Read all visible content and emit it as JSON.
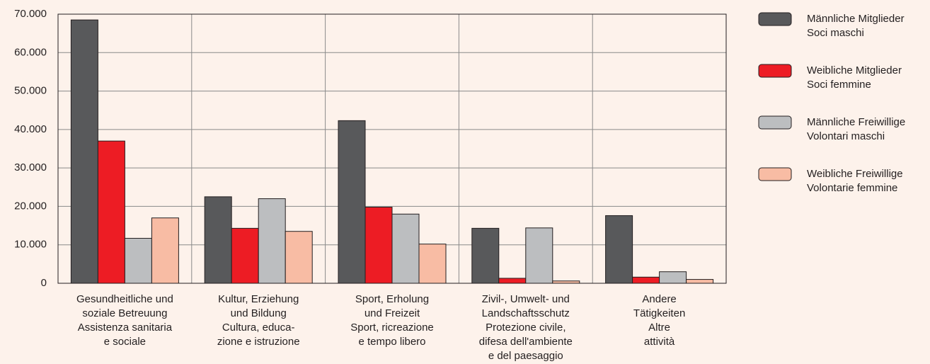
{
  "chart_data": {
    "type": "bar",
    "categories": [
      [
        "Gesundheitliche und",
        "soziale Betreuung",
        "Assistenza sanitaria",
        "e sociale"
      ],
      [
        "Kultur, Erziehung",
        "und Bildung",
        "Cultura, educa-",
        "zione e istruzione"
      ],
      [
        "Sport, Erholung",
        "und Freizeit",
        "Sport, ricreazione",
        "e tempo libero"
      ],
      [
        "Zivil-, Umwelt- und",
        "Landschaftsschutz",
        "Protezione civile,",
        "difesa dell'ambiente",
        "e del paesaggio"
      ],
      [
        "Andere",
        "Tätigkeiten",
        "Altre",
        "attività"
      ]
    ],
    "series": [
      {
        "name": [
          "Männliche Mitglieder",
          "Soci maschi"
        ],
        "color": "#58595b",
        "values": [
          68500,
          22500,
          42300,
          14300,
          17600
        ]
      },
      {
        "name": [
          "Weibliche Mitglieder",
          "Soci femmine"
        ],
        "color": "#ed1c24",
        "values": [
          37000,
          14300,
          19800,
          1300,
          1600
        ]
      },
      {
        "name": [
          "Männliche Freiwillige",
          "Volontari maschi"
        ],
        "color": "#bcbec0",
        "values": [
          11700,
          22000,
          18000,
          14400,
          3000
        ]
      },
      {
        "name": [
          "Weibliche Freiwillige",
          "Volontarie femmine"
        ],
        "color": "#f8bca4",
        "values": [
          17000,
          13500,
          10200,
          600,
          1000
        ]
      }
    ],
    "ylim": [
      0,
      70000
    ],
    "yticks": [
      0,
      {
        "value": 10000,
        "label": "10.000"
      },
      {
        "value": 20000,
        "label": "20.000"
      },
      {
        "value": 30000,
        "label": "30.000"
      },
      {
        "value": 40000,
        "label": "40.000"
      },
      {
        "value": 50000,
        "label": "50.000"
      },
      {
        "value": 60000,
        "label": "60.000"
      },
      {
        "value": 70000,
        "label": "70.000"
      }
    ],
    "grid": true,
    "legend": "right"
  }
}
